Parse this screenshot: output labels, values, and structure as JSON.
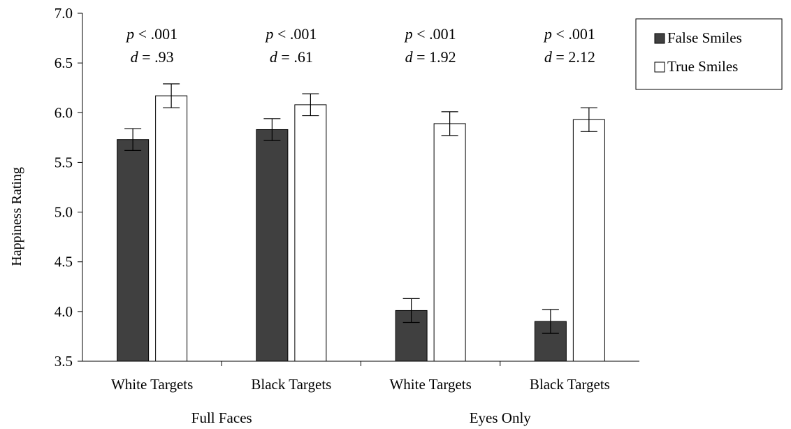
{
  "chart_data": {
    "type": "bar",
    "ylabel": "Happiness Rating",
    "ylim": [
      3.5,
      7.0
    ],
    "yticks": [
      "3.5",
      "4.0",
      "4.5",
      "5.0",
      "5.5",
      "6.0",
      "6.5",
      "7.0"
    ],
    "grid": false,
    "legend_position": "top-right",
    "categories": [
      "White Targets",
      "Black Targets",
      "White Targets",
      "Black Targets"
    ],
    "groups": [
      {
        "label": "Full Faces",
        "categories": [
          0,
          1
        ]
      },
      {
        "label": "Eyes Only",
        "categories": [
          2,
          3
        ]
      }
    ],
    "series": [
      {
        "name": "False Smiles",
        "color": "#404040",
        "values": [
          5.73,
          5.83,
          4.01,
          3.9
        ],
        "errors": [
          0.11,
          0.11,
          0.12,
          0.12
        ]
      },
      {
        "name": "True Smiles",
        "color": "#ffffff",
        "values": [
          6.17,
          6.08,
          5.89,
          5.93
        ],
        "errors": [
          0.12,
          0.11,
          0.12,
          0.12
        ]
      }
    ],
    "annotations": [
      {
        "p_prefix": "p",
        "p_text": " < .001",
        "d_prefix": "d",
        "d_text": " = .93"
      },
      {
        "p_prefix": "p",
        "p_text": " < .001",
        "d_prefix": "d",
        "d_text": " = .61"
      },
      {
        "p_prefix": "p",
        "p_text": " < .001",
        "d_prefix": "d",
        "d_text": " = 1.92"
      },
      {
        "p_prefix": "p",
        "p_text": " < .001",
        "d_prefix": "d",
        "d_text": " = 2.12"
      }
    ]
  }
}
